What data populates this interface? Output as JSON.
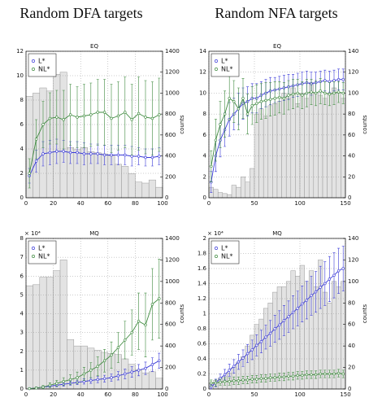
{
  "column_titles": [
    "Random DFA targets",
    "Random NFA targets"
  ],
  "chart_data": [
    {
      "type": "line",
      "title": "EQ",
      "y2label": "counts",
      "legend": "upper left",
      "grid": true,
      "xlim": [
        0,
        100
      ],
      "xticks": [
        0,
        20,
        40,
        60,
        80,
        100
      ],
      "ylim": [
        0,
        12
      ],
      "yticks": [
        0,
        2,
        4,
        6,
        8,
        10,
        12
      ],
      "y2lim": [
        0,
        1400
      ],
      "y2ticks": [
        0,
        200,
        400,
        600,
        800,
        1000,
        1200,
        1400
      ],
      "x": [
        2.5,
        7.5,
        12.5,
        17.5,
        22.5,
        27.5,
        32.5,
        37.5,
        42.5,
        47.5,
        52.5,
        57.5,
        62.5,
        67.5,
        72.5,
        77.5,
        82.5,
        87.5,
        92.5,
        97.5
      ],
      "histogram": {
        "axis": "y2",
        "color": "#e3e3e3",
        "bins": [
          0,
          5,
          10,
          15,
          20,
          25,
          30,
          35,
          40,
          45,
          50,
          55,
          60,
          65,
          70,
          75,
          80,
          85,
          90,
          95,
          100
        ],
        "counts": [
          970,
          1000,
          1050,
          1020,
          1180,
          1200,
          480,
          460,
          480,
          440,
          430,
          420,
          400,
          320,
          300,
          230,
          150,
          140,
          170,
          100
        ]
      },
      "series": [
        {
          "name": "L*",
          "color": "#3a3ad8",
          "values": [
            1.8,
            3.0,
            3.6,
            3.7,
            3.8,
            3.8,
            3.7,
            3.7,
            3.6,
            3.6,
            3.6,
            3.5,
            3.5,
            3.5,
            3.5,
            3.4,
            3.4,
            3.3,
            3.3,
            3.4
          ],
          "errors": [
            0.6,
            0.9,
            1.0,
            1.0,
            1.0,
            0.9,
            0.9,
            0.9,
            0.9,
            0.8,
            0.8,
            0.8,
            0.8,
            0.8,
            0.8,
            0.8,
            0.7,
            0.7,
            0.7,
            0.7
          ]
        },
        {
          "name": "NL*",
          "color": "#3e8a3e",
          "values": [
            2.0,
            4.8,
            6.0,
            6.5,
            6.6,
            6.4,
            6.8,
            6.6,
            6.7,
            6.8,
            7.0,
            7.0,
            6.5,
            6.7,
            7.0,
            6.4,
            6.9,
            6.6,
            6.5,
            6.8
          ],
          "errors": [
            1.2,
            1.6,
            1.9,
            2.1,
            2.2,
            2.4,
            2.5,
            2.5,
            2.6,
            2.6,
            2.7,
            2.7,
            2.8,
            2.8,
            2.9,
            2.9,
            3.0,
            3.0,
            3.0,
            3.0
          ]
        }
      ]
    },
    {
      "type": "line",
      "title": "EQ",
      "y2label": "counts",
      "legend": "upper left",
      "grid": true,
      "xlim": [
        0,
        150
      ],
      "xticks": [
        0,
        50,
        100,
        150
      ],
      "ylim": [
        0,
        14
      ],
      "yticks": [
        0,
        2,
        4,
        6,
        8,
        10,
        12,
        14
      ],
      "y2lim": [
        0,
        140
      ],
      "y2ticks": [
        0,
        20,
        40,
        60,
        80,
        100,
        120,
        140
      ],
      "x": [
        2.5,
        7.5,
        12.5,
        17.5,
        22.5,
        27.5,
        32.5,
        37.5,
        42.5,
        47.5,
        52.5,
        57.5,
        62.5,
        67.5,
        72.5,
        77.5,
        82.5,
        87.5,
        92.5,
        97.5,
        102.5,
        107.5,
        112.5,
        117.5,
        122.5,
        127.5,
        132.5,
        137.5,
        142.5,
        147.5
      ],
      "histogram": {
        "axis": "y2",
        "color": "#e3e3e3",
        "bins": [
          0,
          5,
          10,
          15,
          20,
          25,
          30,
          35,
          40,
          45,
          50,
          55,
          60,
          65,
          70,
          75,
          80,
          85,
          90,
          95,
          100,
          105,
          110,
          115,
          120,
          125,
          130,
          135,
          140,
          145,
          150
        ],
        "counts": [
          10,
          8,
          5,
          4,
          3,
          12,
          10,
          20,
          15,
          28,
          80,
          85,
          78,
          88,
          90,
          92,
          100,
          95,
          105,
          90,
          100,
          95,
          110,
          100,
          98,
          95,
          100,
          105,
          100,
          95
        ]
      },
      "series": [
        {
          "name": "L*",
          "color": "#3a3ad8",
          "values": [
            1.5,
            4.0,
            5.5,
            6.5,
            7.5,
            8.0,
            8.5,
            9.0,
            9.2,
            9.5,
            9.5,
            9.8,
            10.0,
            10.2,
            10.3,
            10.4,
            10.5,
            10.6,
            10.7,
            10.8,
            10.9,
            11.0,
            10.9,
            11.0,
            11.1,
            11.2,
            11.1,
            11.2,
            11.3,
            11.3
          ],
          "errors": [
            1.0,
            1.5,
            1.6,
            1.6,
            1.6,
            1.5,
            1.5,
            1.5,
            1.4,
            1.4,
            1.4,
            1.3,
            1.3,
            1.3,
            1.2,
            1.2,
            1.2,
            1.2,
            1.1,
            1.1,
            1.1,
            1.1,
            1.1,
            1.0,
            1.0,
            1.0,
            1.0,
            1.0,
            1.0,
            1.0
          ]
        },
        {
          "name": "NL*",
          "color": "#3e8a3e",
          "values": [
            3.0,
            5.5,
            7.0,
            8.0,
            9.5,
            9.2,
            8.5,
            9.5,
            8.0,
            8.8,
            9.0,
            9.2,
            9.3,
            9.4,
            9.5,
            9.6,
            9.5,
            9.8,
            9.9,
            10.0,
            9.8,
            10.0,
            10.1,
            10.0,
            10.2,
            10.0,
            9.9,
            10.0,
            10.1,
            10.0
          ],
          "errors": [
            1.5,
            2.0,
            2.2,
            2.2,
            2.1,
            2.0,
            2.0,
            1.9,
            1.9,
            1.8,
            1.8,
            1.7,
            1.7,
            1.6,
            1.6,
            1.5,
            1.5,
            1.4,
            1.4,
            1.3,
            1.3,
            1.3,
            1.2,
            1.2,
            1.2,
            1.1,
            1.1,
            1.1,
            1.0,
            1.0
          ]
        }
      ]
    },
    {
      "type": "line",
      "title": "MQ",
      "y2label": "counts",
      "y_multiplier": "× 10⁴",
      "legend": "upper left",
      "grid": true,
      "xlim": [
        0,
        100
      ],
      "xticks": [
        0,
        20,
        40,
        60,
        80,
        100
      ],
      "ylim": [
        0,
        8
      ],
      "yticks": [
        0,
        1,
        2,
        3,
        4,
        5,
        6,
        7,
        8
      ],
      "y2lim": [
        0,
        1400
      ],
      "y2ticks": [
        0,
        200,
        400,
        600,
        800,
        1000,
        1200,
        1400
      ],
      "x": [
        2.5,
        7.5,
        12.5,
        17.5,
        22.5,
        27.5,
        32.5,
        37.5,
        42.5,
        47.5,
        52.5,
        57.5,
        62.5,
        67.5,
        72.5,
        77.5,
        82.5,
        87.5,
        92.5,
        97.5
      ],
      "histogram": {
        "axis": "y2",
        "color": "#e3e3e3",
        "bins": [
          0,
          5,
          10,
          15,
          20,
          25,
          30,
          35,
          40,
          45,
          50,
          55,
          60,
          65,
          70,
          75,
          80,
          85,
          90,
          95,
          100
        ],
        "counts": [
          960,
          970,
          1040,
          1040,
          1100,
          1200,
          460,
          400,
          400,
          380,
          360,
          340,
          330,
          320,
          280,
          230,
          180,
          150,
          160,
          100
        ]
      },
      "series": [
        {
          "name": "L*",
          "color": "#3a3ad8",
          "values": [
            0.02,
            0.05,
            0.1,
            0.15,
            0.2,
            0.25,
            0.3,
            0.35,
            0.4,
            0.45,
            0.5,
            0.55,
            0.6,
            0.7,
            0.8,
            0.9,
            1.0,
            1.1,
            1.3,
            1.5
          ],
          "errors": [
            0.02,
            0.04,
            0.05,
            0.06,
            0.08,
            0.1,
            0.1,
            0.12,
            0.14,
            0.15,
            0.17,
            0.18,
            0.2,
            0.22,
            0.25,
            0.28,
            0.3,
            0.33,
            0.36,
            0.4
          ]
        },
        {
          "name": "NL*",
          "color": "#3e8a3e",
          "values": [
            0.02,
            0.05,
            0.1,
            0.2,
            0.3,
            0.4,
            0.5,
            0.6,
            0.8,
            1.0,
            1.2,
            1.5,
            1.8,
            2.2,
            2.6,
            3.0,
            3.6,
            3.4,
            4.5,
            4.8
          ],
          "errors": [
            0.02,
            0.05,
            0.08,
            0.12,
            0.15,
            0.2,
            0.25,
            0.3,
            0.35,
            0.4,
            0.5,
            0.6,
            0.7,
            0.8,
            1.0,
            1.2,
            1.5,
            1.7,
            1.9,
            2.1
          ]
        }
      ]
    },
    {
      "type": "line",
      "title": "MQ",
      "y2label": "counts",
      "y_multiplier": "× 10⁴",
      "legend": "upper left",
      "grid": true,
      "xlim": [
        0,
        150
      ],
      "xticks": [
        0,
        50,
        100,
        150
      ],
      "ylim": [
        0,
        2
      ],
      "yticks": [
        0,
        0.2,
        0.4,
        0.6,
        0.8,
        1,
        1.2,
        1.4,
        1.6,
        1.8,
        2
      ],
      "y2lim": [
        0,
        140
      ],
      "y2ticks": [
        0,
        20,
        40,
        60,
        80,
        100,
        120,
        140
      ],
      "x": [
        2.5,
        7.5,
        12.5,
        17.5,
        22.5,
        27.5,
        32.5,
        37.5,
        42.5,
        47.5,
        52.5,
        57.5,
        62.5,
        67.5,
        72.5,
        77.5,
        82.5,
        87.5,
        92.5,
        97.5,
        102.5,
        107.5,
        112.5,
        117.5,
        122.5,
        127.5,
        132.5,
        137.5,
        142.5,
        147.5
      ],
      "histogram": {
        "axis": "y2",
        "color": "#e3e3e3",
        "bins": [
          0,
          5,
          10,
          15,
          20,
          25,
          30,
          35,
          40,
          45,
          50,
          55,
          60,
          65,
          70,
          75,
          80,
          85,
          90,
          95,
          100,
          105,
          110,
          115,
          120,
          125,
          130,
          135,
          140,
          145,
          150
        ],
        "counts": [
          5,
          8,
          10,
          12,
          15,
          20,
          25,
          30,
          40,
          50,
          60,
          65,
          75,
          80,
          90,
          95,
          95,
          100,
          110,
          105,
          115,
          100,
          110,
          95,
          120,
          90,
          80,
          100,
          95,
          100
        ]
      },
      "series": [
        {
          "name": "L*",
          "color": "#3a3ad8",
          "values": [
            0.03,
            0.08,
            0.14,
            0.19,
            0.25,
            0.3,
            0.36,
            0.41,
            0.47,
            0.52,
            0.58,
            0.63,
            0.69,
            0.74,
            0.8,
            0.85,
            0.91,
            0.96,
            1.02,
            1.07,
            1.13,
            1.18,
            1.24,
            1.29,
            1.35,
            1.4,
            1.46,
            1.51,
            1.57,
            1.6
          ],
          "errors": [
            0.03,
            0.05,
            0.06,
            0.07,
            0.08,
            0.09,
            0.1,
            0.11,
            0.12,
            0.13,
            0.14,
            0.15,
            0.16,
            0.17,
            0.18,
            0.19,
            0.2,
            0.21,
            0.22,
            0.23,
            0.24,
            0.25,
            0.26,
            0.27,
            0.28,
            0.29,
            0.3,
            0.3,
            0.3,
            0.3
          ]
        },
        {
          "name": "NL*",
          "color": "#3e8a3e",
          "values": [
            0.08,
            0.08,
            0.09,
            0.1,
            0.1,
            0.11,
            0.11,
            0.12,
            0.12,
            0.13,
            0.13,
            0.14,
            0.14,
            0.15,
            0.15,
            0.16,
            0.16,
            0.17,
            0.17,
            0.18,
            0.18,
            0.19,
            0.19,
            0.19,
            0.2,
            0.2,
            0.2,
            0.2,
            0.21,
            0.2
          ],
          "errors": [
            0.04,
            0.04,
            0.04,
            0.05,
            0.05,
            0.05,
            0.05,
            0.05,
            0.05,
            0.05,
            0.05,
            0.05,
            0.05,
            0.05,
            0.05,
            0.05,
            0.05,
            0.05,
            0.05,
            0.05,
            0.05,
            0.05,
            0.05,
            0.05,
            0.05,
            0.05,
            0.05,
            0.05,
            0.05,
            0.05
          ]
        }
      ]
    }
  ]
}
